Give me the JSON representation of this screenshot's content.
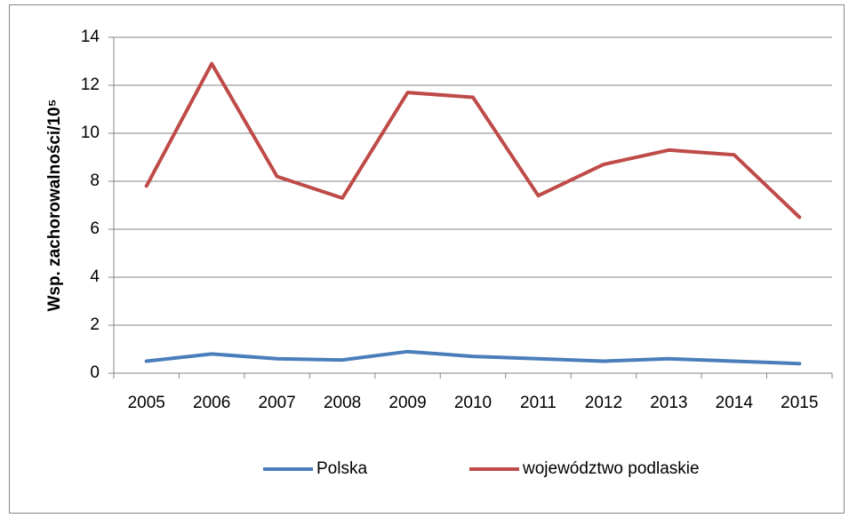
{
  "chart_data": {
    "type": "line",
    "y_label": "Wsp. zachorowalności/10⁵",
    "categories": [
      "2005",
      "2006",
      "2007",
      "2008",
      "2009",
      "2010",
      "2011",
      "2012",
      "2013",
      "2014",
      "2015"
    ],
    "series": [
      {
        "name": "Polska",
        "color": "#4a7ebb",
        "values": [
          0.5,
          0.8,
          0.6,
          0.55,
          0.9,
          0.7,
          0.6,
          0.5,
          0.6,
          0.5,
          0.4
        ]
      },
      {
        "name": "województwo podlaskie",
        "color": "#be4b48",
        "values": [
          7.8,
          12.9,
          8.2,
          7.3,
          11.7,
          11.5,
          7.4,
          8.7,
          9.3,
          9.1,
          6.5
        ]
      }
    ],
    "ylim": [
      0,
      14
    ],
    "yticks": [
      0,
      2,
      4,
      6,
      8,
      10,
      12,
      14
    ],
    "grid": true,
    "legend": "bottom"
  }
}
